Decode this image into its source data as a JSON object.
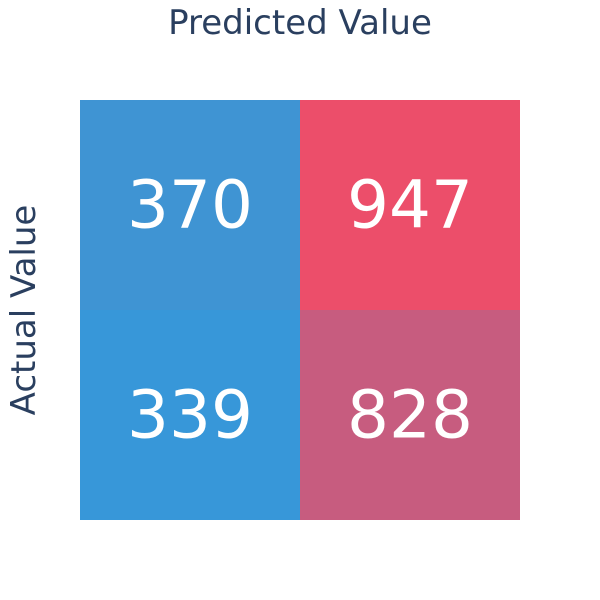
{
  "chart_data": {
    "type": "heatmap",
    "x_title": "Predicted Value",
    "y_title": "Actual Value",
    "rows": [
      {
        "values": [
          370,
          947
        ]
      },
      {
        "values": [
          339,
          828
        ]
      }
    ],
    "cell_colors": [
      [
        "#3f94d3",
        "#ec4e6a"
      ],
      [
        "#3797d9",
        "#c75c7f"
      ]
    ]
  }
}
